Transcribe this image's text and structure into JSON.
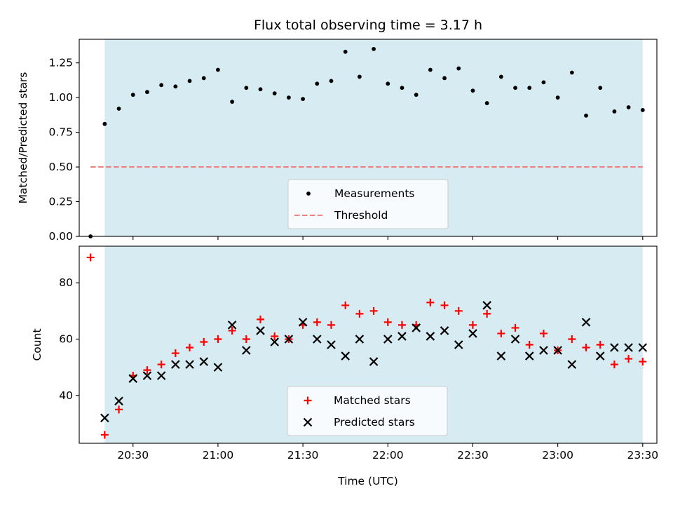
{
  "chart_data": [
    {
      "type": "scatter",
      "title": "Flux total observing time = 3.17 h",
      "ylabel": "Matched/Predicted stars",
      "xlim": [
        "20:11",
        "23:35"
      ],
      "ylim": [
        0,
        1.42
      ],
      "yticks": [
        "0.00",
        "0.25",
        "0.50",
        "0.75",
        "1.00",
        "1.25"
      ],
      "grid": false,
      "legend_position": "bottom-center",
      "shaded_span": {
        "from": "20:20",
        "to": "23:30",
        "color": "#add8e6"
      },
      "series": [
        {
          "name": "Measurements",
          "marker": "dot",
          "color": "#000000",
          "points": [
            [
              "20:15",
              0.0
            ],
            [
              "20:20",
              0.81
            ],
            [
              "20:25",
              0.92
            ],
            [
              "20:30",
              1.02
            ],
            [
              "20:35",
              1.04
            ],
            [
              "20:40",
              1.09
            ],
            [
              "20:45",
              1.08
            ],
            [
              "20:50",
              1.12
            ],
            [
              "20:55",
              1.14
            ],
            [
              "21:00",
              1.2
            ],
            [
              "21:05",
              0.97
            ],
            [
              "21:10",
              1.07
            ],
            [
              "21:15",
              1.06
            ],
            [
              "21:20",
              1.03
            ],
            [
              "21:25",
              1.0
            ],
            [
              "21:30",
              0.99
            ],
            [
              "21:35",
              1.1
            ],
            [
              "21:40",
              1.12
            ],
            [
              "21:45",
              1.33
            ],
            [
              "21:50",
              1.15
            ],
            [
              "21:55",
              1.35
            ],
            [
              "22:00",
              1.1
            ],
            [
              "22:05",
              1.07
            ],
            [
              "22:10",
              1.02
            ],
            [
              "22:15",
              1.2
            ],
            [
              "22:20",
              1.14
            ],
            [
              "22:25",
              1.21
            ],
            [
              "22:30",
              1.05
            ],
            [
              "22:35",
              0.96
            ],
            [
              "22:40",
              1.15
            ],
            [
              "22:45",
              1.07
            ],
            [
              "22:50",
              1.07
            ],
            [
              "22:55",
              1.11
            ],
            [
              "23:00",
              1.0
            ],
            [
              "23:05",
              1.18
            ],
            [
              "23:10",
              0.87
            ],
            [
              "23:15",
              1.07
            ],
            [
              "23:20",
              0.9
            ],
            [
              "23:25",
              0.93
            ],
            [
              "23:30",
              0.91
            ]
          ]
        },
        {
          "name": "Threshold",
          "marker": "dashed-line",
          "color": "#f08080",
          "points": [
            [
              "20:15",
              0.5
            ],
            [
              "23:30",
              0.5
            ]
          ]
        }
      ]
    },
    {
      "type": "scatter",
      "xlabel": "Time (UTC)",
      "ylabel": "Count",
      "xlim": [
        "20:11",
        "23:35"
      ],
      "xticks": [
        "20:30",
        "21:00",
        "21:30",
        "22:00",
        "22:30",
        "23:00",
        "23:30"
      ],
      "ylim": [
        23,
        93
      ],
      "yticks": [
        "40",
        "60",
        "80"
      ],
      "grid": false,
      "legend_position": "bottom-center",
      "shaded_span": {
        "from": "20:20",
        "to": "23:30",
        "color": "#add8e6"
      },
      "series": [
        {
          "name": "Matched stars",
          "marker": "plus",
          "color": "#ff0000",
          "points": [
            [
              "20:15",
              89
            ],
            [
              "20:20",
              26
            ],
            [
              "20:25",
              35
            ],
            [
              "20:30",
              47
            ],
            [
              "20:35",
              49
            ],
            [
              "20:40",
              51
            ],
            [
              "20:45",
              55
            ],
            [
              "20:50",
              57
            ],
            [
              "20:55",
              59
            ],
            [
              "21:00",
              60
            ],
            [
              "21:05",
              63
            ],
            [
              "21:10",
              60
            ],
            [
              "21:15",
              67
            ],
            [
              "21:20",
              61
            ],
            [
              "21:25",
              60
            ],
            [
              "21:30",
              65
            ],
            [
              "21:35",
              66
            ],
            [
              "21:40",
              65
            ],
            [
              "21:45",
              72
            ],
            [
              "21:50",
              69
            ],
            [
              "21:55",
              70
            ],
            [
              "22:00",
              66
            ],
            [
              "22:05",
              65
            ],
            [
              "22:10",
              65
            ],
            [
              "22:15",
              73
            ],
            [
              "22:20",
              72
            ],
            [
              "22:25",
              70
            ],
            [
              "22:30",
              65
            ],
            [
              "22:35",
              69
            ],
            [
              "22:40",
              62
            ],
            [
              "22:45",
              64
            ],
            [
              "22:50",
              58
            ],
            [
              "22:55",
              62
            ],
            [
              "23:00",
              56
            ],
            [
              "23:05",
              60
            ],
            [
              "23:10",
              57
            ],
            [
              "23:15",
              58
            ],
            [
              "23:20",
              51
            ],
            [
              "23:25",
              53
            ],
            [
              "23:30",
              52
            ]
          ]
        },
        {
          "name": "Predicted stars",
          "marker": "x",
          "color": "#000000",
          "points": [
            [
              "20:20",
              32
            ],
            [
              "20:25",
              38
            ],
            [
              "20:30",
              46
            ],
            [
              "20:35",
              47
            ],
            [
              "20:40",
              47
            ],
            [
              "20:45",
              51
            ],
            [
              "20:50",
              51
            ],
            [
              "20:55",
              52
            ],
            [
              "21:00",
              50
            ],
            [
              "21:05",
              65
            ],
            [
              "21:10",
              56
            ],
            [
              "21:15",
              63
            ],
            [
              "21:20",
              59
            ],
            [
              "21:25",
              60
            ],
            [
              "21:30",
              66
            ],
            [
              "21:35",
              60
            ],
            [
              "21:40",
              58
            ],
            [
              "21:45",
              54
            ],
            [
              "21:50",
              60
            ],
            [
              "21:55",
              52
            ],
            [
              "22:00",
              60
            ],
            [
              "22:05",
              61
            ],
            [
              "22:10",
              64
            ],
            [
              "22:15",
              61
            ],
            [
              "22:20",
              63
            ],
            [
              "22:25",
              58
            ],
            [
              "22:30",
              62
            ],
            [
              "22:35",
              72
            ],
            [
              "22:40",
              54
            ],
            [
              "22:45",
              60
            ],
            [
              "22:50",
              54
            ],
            [
              "22:55",
              56
            ],
            [
              "23:00",
              56
            ],
            [
              "23:05",
              51
            ],
            [
              "23:10",
              66
            ],
            [
              "23:15",
              54
            ],
            [
              "23:20",
              57
            ],
            [
              "23:25",
              57
            ],
            [
              "23:30",
              57
            ]
          ]
        }
      ]
    }
  ]
}
